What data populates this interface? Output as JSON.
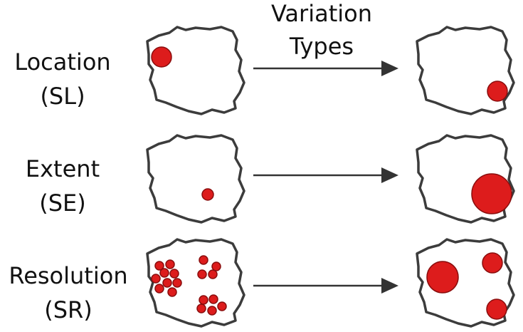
{
  "title_lines": [
    "Variation",
    "Types"
  ],
  "colors": {
    "dot": "#dd1c1c",
    "outline": "#3c3c3c",
    "arrow": "#333333",
    "text": "#111111"
  },
  "rows": [
    {
      "label": "Location",
      "code": "(SL)"
    },
    {
      "label": "Extent",
      "code": "(SE)"
    },
    {
      "label": "Resolution",
      "code": "(SR)"
    }
  ]
}
